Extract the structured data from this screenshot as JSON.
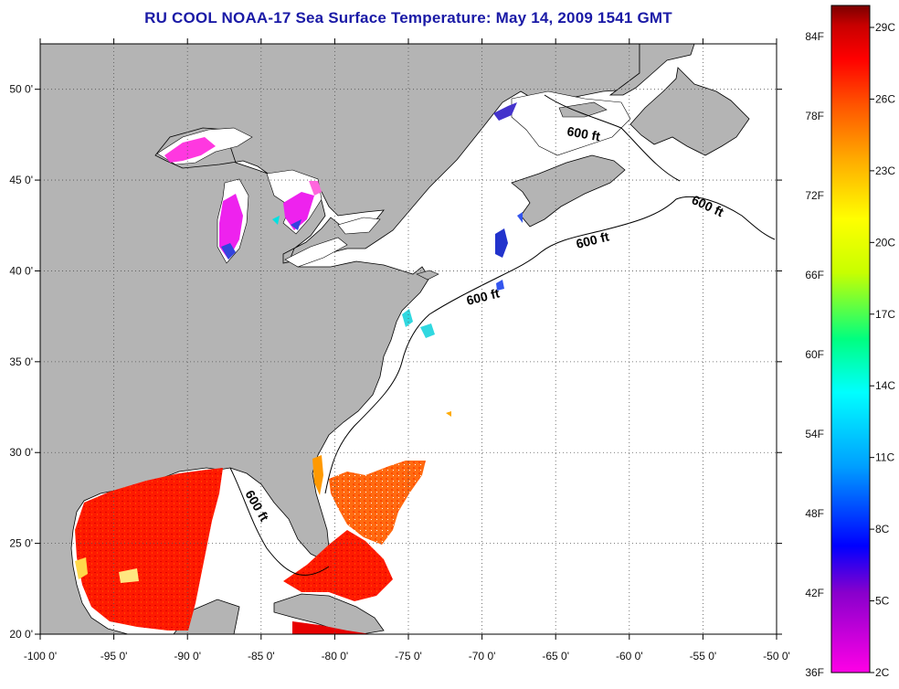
{
  "title": "RU COOL  NOAA-17  Sea Surface Temperature:  May 14, 2009 1541 GMT",
  "map": {
    "lon_range": [
      -100,
      -50
    ],
    "lat_range": [
      20,
      52.5
    ],
    "x_ticks": [
      "-100 0'",
      "-95 0'",
      "-90 0'",
      "-85 0'",
      "-80 0'",
      "-75 0'",
      "-70 0'",
      "-65 0'",
      "-60 0'",
      "-55 0'",
      "-50 0'"
    ],
    "y_ticks": [
      "50 0'",
      "45 0'",
      "40 0'",
      "35 0'",
      "30 0'",
      "25 0'",
      "20 0'"
    ],
    "contour_label": "600 ft",
    "grid": "dotted",
    "colors": {
      "land": "#b4b4b4",
      "ocean_nodata": "#ffffff",
      "coast": "#000000"
    }
  },
  "colorbar": {
    "fahrenheit_labels": [
      "84F",
      "78F",
      "72F",
      "66F",
      "60F",
      "54F",
      "48F",
      "42F",
      "36F"
    ],
    "celsius_labels": [
      "29C",
      "26C",
      "23C",
      "20C",
      "17C",
      "14C",
      "11C",
      "8C",
      "5C",
      "2C"
    ],
    "stops": [
      "#ff00e6",
      "#8800cc",
      "#0000ff",
      "#00a0ff",
      "#00ffff",
      "#00ff80",
      "#c8ff00",
      "#ffff00",
      "#ffaa00",
      "#ff5500",
      "#ff0000",
      "#c80000",
      "#7a0000"
    ]
  }
}
